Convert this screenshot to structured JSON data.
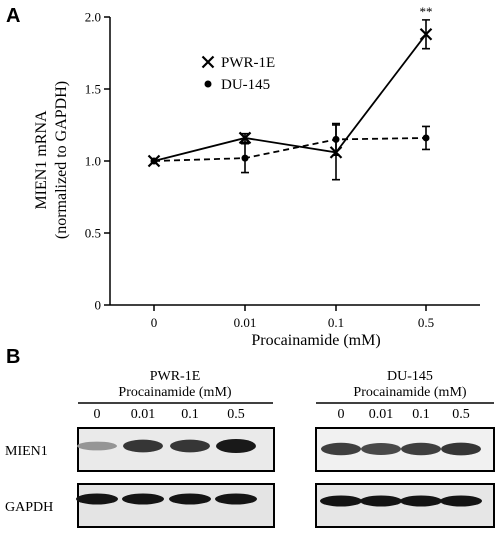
{
  "panel_labels": {
    "a": "A",
    "b": "B"
  },
  "chart_data": {
    "type": "line",
    "x": [
      "0",
      "0.01",
      "0.1",
      "0.5"
    ],
    "ylabel_line1": "MIEN1 mRNA",
    "ylabel_line2": "(normalized to GAPDH)",
    "xlabel": "Procainamide (mM)",
    "ylim": [
      0,
      2.0
    ],
    "yticks": [
      "0",
      "0.5",
      "1.0",
      "1.5",
      "2.0"
    ],
    "series": [
      {
        "name": "PWR-1E",
        "marker": "x",
        "line": "solid",
        "values": [
          1.0,
          1.16,
          1.06,
          1.88
        ],
        "errors": [
          0.0,
          0.03,
          0.19,
          0.1
        ]
      },
      {
        "name": "DU-145",
        "marker": "dot",
        "line": "dashed",
        "values": [
          1.0,
          1.02,
          1.15,
          1.16
        ],
        "errors": [
          0.0,
          0.1,
          0.11,
          0.08
        ]
      }
    ],
    "annotation": {
      "text": "**",
      "series": "PWR-1E",
      "category": "0.5"
    }
  },
  "blots": {
    "left": {
      "cell_line": "PWR-1E",
      "treatment": "Procainamide (mM)",
      "doses": [
        "0",
        "0.01",
        "0.1",
        "0.5"
      ],
      "mien1_intensity": [
        0.35,
        0.85,
        0.85,
        1.0
      ],
      "gapdh_intensity": [
        1.0,
        1.0,
        1.0,
        1.0
      ]
    },
    "right": {
      "cell_line": "DU-145",
      "treatment": "Procainamide (mM)",
      "doses": [
        "0",
        "0.01",
        "0.1",
        "0.5"
      ],
      "mien1_intensity": [
        0.8,
        0.75,
        0.8,
        0.85
      ],
      "gapdh_intensity": [
        1.0,
        1.0,
        1.0,
        1.0
      ]
    },
    "row_labels": {
      "mien1": "MIEN1",
      "gapdh": "GAPDH"
    }
  }
}
